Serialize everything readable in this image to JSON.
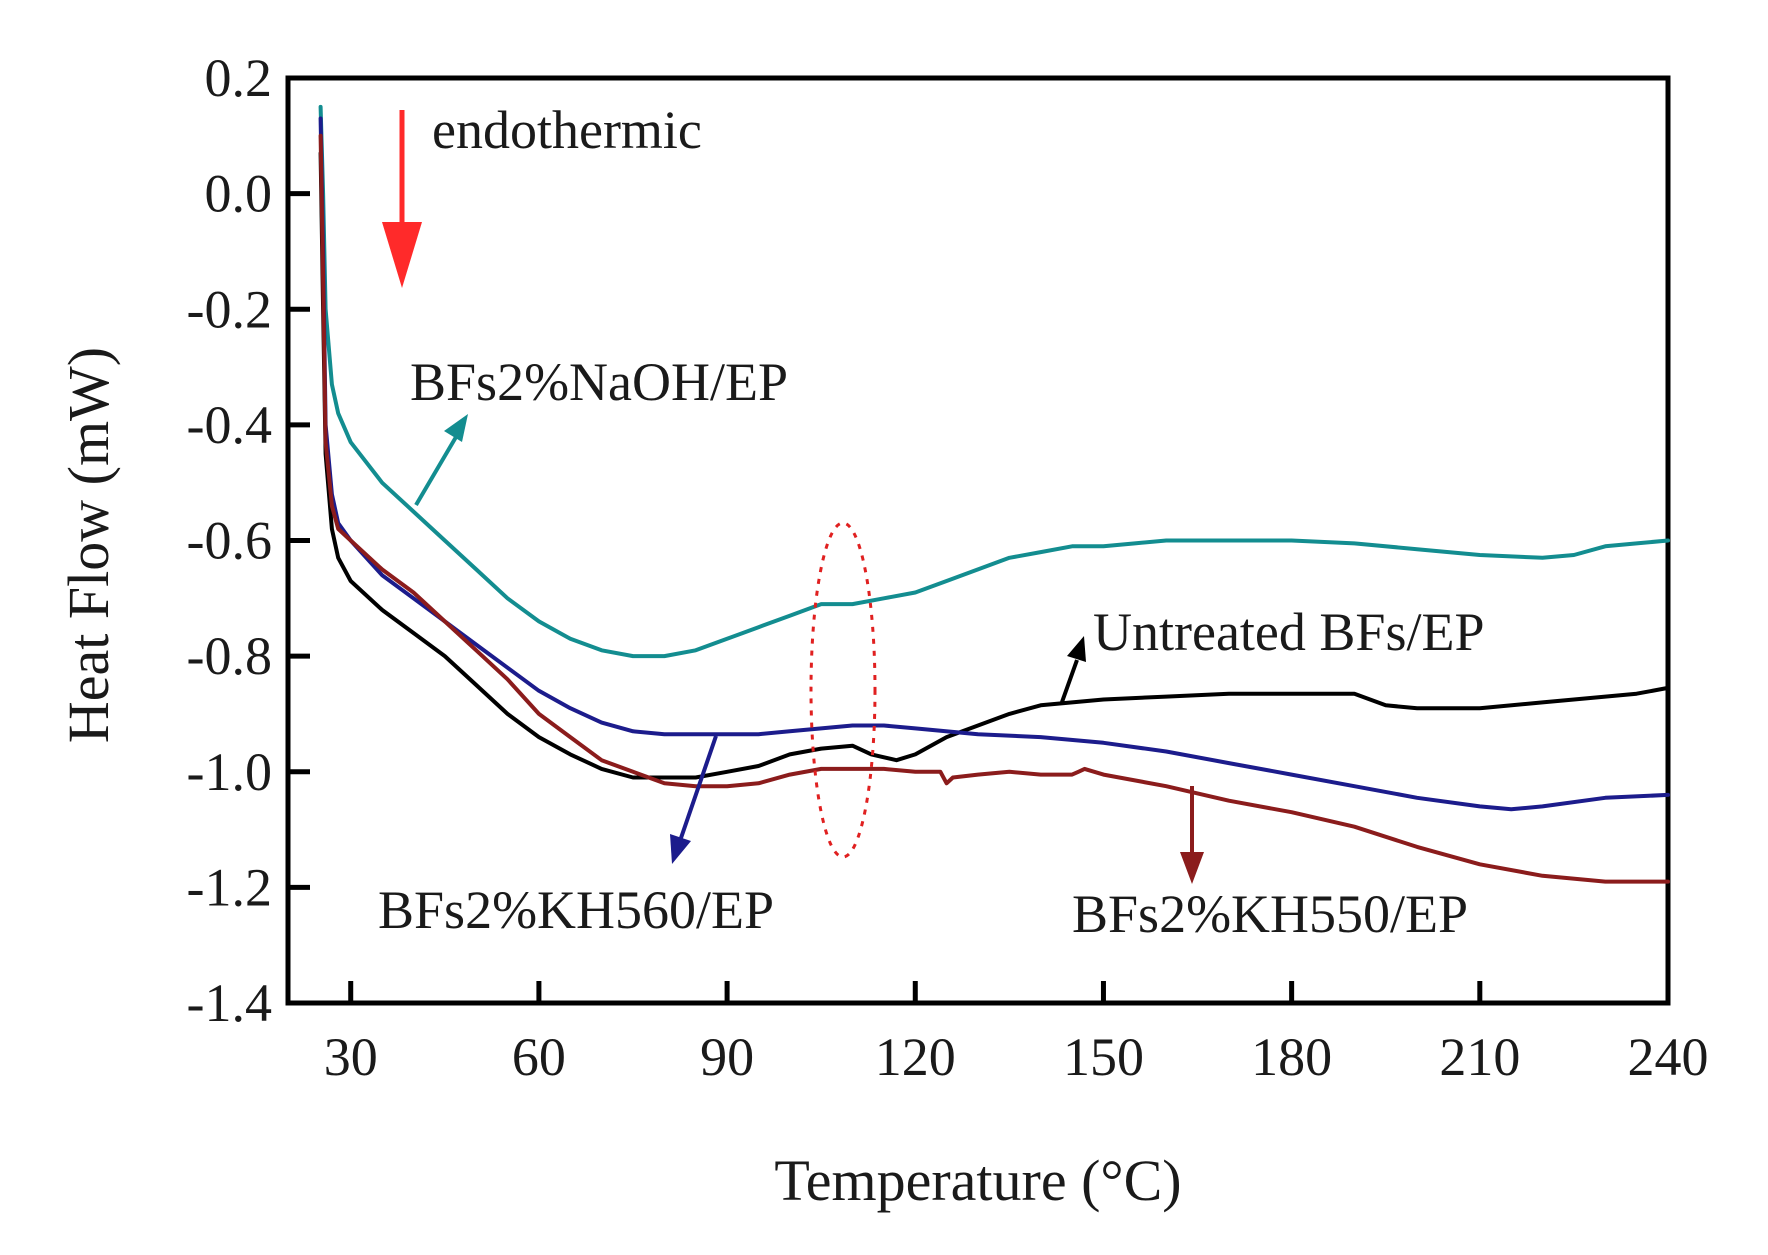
{
  "chart_data": {
    "type": "line",
    "title": "",
    "xlabel": "Temperature (°C)",
    "ylabel": "Heat Flow (mW)",
    "xlim": [
      20,
      240
    ],
    "ylim": [
      -1.4,
      0.2
    ],
    "xticks": [
      30,
      60,
      90,
      120,
      150,
      180,
      210,
      240
    ],
    "xtick_labels": [
      "30",
      "60",
      "90",
      "120",
      "150",
      "180",
      "210",
      "240"
    ],
    "yticks": [
      0.2,
      0.0,
      -0.2,
      -0.4,
      -0.6,
      -0.8,
      -1.0,
      -1.2,
      -1.4
    ],
    "ytick_labels": [
      "0.2",
      "0.0",
      "-0.2",
      "-0.4",
      "-0.6",
      "-0.8",
      "-1.0",
      "-1.2",
      "-1.4"
    ],
    "grid": false,
    "legend": "none",
    "series": [
      {
        "name": "BFs2%NaOH/EP",
        "color": "#138d90",
        "x": [
          25.2,
          25.6,
          26,
          27,
          28,
          30,
          35,
          40,
          45,
          50,
          55,
          60,
          65,
          70,
          75,
          80,
          85,
          90,
          95,
          100,
          105,
          110,
          115,
          120,
          125,
          130,
          135,
          140,
          145,
          150,
          155,
          160,
          170,
          180,
          190,
          200,
          210,
          220,
          225,
          230,
          235,
          240
        ],
        "y": [
          0.15,
          0.0,
          -0.2,
          -0.33,
          -0.38,
          -0.43,
          -0.5,
          -0.55,
          -0.6,
          -0.65,
          -0.7,
          -0.74,
          -0.77,
          -0.79,
          -0.8,
          -0.8,
          -0.79,
          -0.77,
          -0.75,
          -0.73,
          -0.71,
          -0.71,
          -0.7,
          -0.69,
          -0.67,
          -0.65,
          -0.63,
          -0.62,
          -0.61,
          -0.61,
          -0.605,
          -0.6,
          -0.6,
          -0.6,
          -0.605,
          -0.615,
          -0.625,
          -0.63,
          -0.625,
          -0.61,
          -0.605,
          -0.6
        ]
      },
      {
        "name": "Untreated BFs/EP",
        "color": "#000000",
        "x": [
          25.2,
          25.6,
          26,
          27,
          28,
          30,
          35,
          40,
          45,
          50,
          55,
          60,
          65,
          70,
          75,
          80,
          85,
          90,
          95,
          100,
          105,
          110,
          113,
          117,
          120,
          125,
          130,
          135,
          140,
          145,
          150,
          160,
          170,
          180,
          190,
          195,
          200,
          210,
          220,
          230,
          235,
          240
        ],
        "y": [
          0.07,
          -0.2,
          -0.45,
          -0.58,
          -0.63,
          -0.67,
          -0.72,
          -0.76,
          -0.8,
          -0.85,
          -0.9,
          -0.94,
          -0.97,
          -0.995,
          -1.01,
          -1.01,
          -1.01,
          -1.0,
          -0.99,
          -0.97,
          -0.96,
          -0.955,
          -0.97,
          -0.98,
          -0.97,
          -0.94,
          -0.92,
          -0.9,
          -0.885,
          -0.88,
          -0.875,
          -0.87,
          -0.865,
          -0.865,
          -0.865,
          -0.885,
          -0.89,
          -0.89,
          -0.88,
          -0.87,
          -0.865,
          -0.855
        ]
      },
      {
        "name": "BFs2%KH560/EP",
        "color": "#1c1c8c",
        "x": [
          25.2,
          25.6,
          26,
          27,
          28,
          30,
          35,
          40,
          45,
          50,
          55,
          60,
          65,
          70,
          75,
          80,
          85,
          90,
          95,
          100,
          105,
          110,
          115,
          120,
          130,
          140,
          150,
          160,
          170,
          180,
          190,
          200,
          210,
          215,
          220,
          230,
          240
        ],
        "y": [
          0.13,
          -0.1,
          -0.4,
          -0.52,
          -0.57,
          -0.6,
          -0.66,
          -0.7,
          -0.74,
          -0.78,
          -0.82,
          -0.86,
          -0.89,
          -0.915,
          -0.93,
          -0.935,
          -0.935,
          -0.935,
          -0.935,
          -0.93,
          -0.925,
          -0.92,
          -0.92,
          -0.925,
          -0.935,
          -0.94,
          -0.95,
          -0.965,
          -0.985,
          -1.005,
          -1.025,
          -1.045,
          -1.06,
          -1.065,
          -1.06,
          -1.045,
          -1.04
        ]
      },
      {
        "name": "BFs2%KH550/EP",
        "color": "#8b1c1c",
        "x": [
          25.2,
          25.6,
          26,
          27,
          28,
          30,
          35,
          40,
          45,
          50,
          55,
          60,
          65,
          70,
          75,
          80,
          85,
          90,
          95,
          100,
          105,
          110,
          115,
          120,
          124,
          125,
          126,
          130,
          135,
          140,
          145,
          146,
          147,
          150,
          160,
          170,
          180,
          190,
          200,
          210,
          220,
          230,
          240
        ],
        "y": [
          0.1,
          -0.15,
          -0.43,
          -0.54,
          -0.58,
          -0.6,
          -0.65,
          -0.69,
          -0.74,
          -0.79,
          -0.84,
          -0.9,
          -0.94,
          -0.98,
          -1.0,
          -1.02,
          -1.025,
          -1.025,
          -1.02,
          -1.005,
          -0.995,
          -0.995,
          -0.995,
          -1.0,
          -1.0,
          -1.02,
          -1.01,
          -1.005,
          -1.0,
          -1.005,
          -1.005,
          -1.0,
          -0.995,
          -1.005,
          -1.025,
          -1.05,
          -1.07,
          -1.095,
          -1.13,
          -1.16,
          -1.18,
          -1.19,
          -1.19
        ]
      }
    ],
    "annotations": {
      "endothermic": "endothermic",
      "label_naoh": "BFs2%NaOH/EP",
      "label_untreated": "Untreated BFs/EP",
      "label_kh560": "BFs2%KH560/EP",
      "label_kh550": "BFs2%KH550/EP"
    },
    "arrow_colors": {
      "endothermic": "#ff2a2a",
      "highlight_ellipse": "#e02020"
    }
  }
}
